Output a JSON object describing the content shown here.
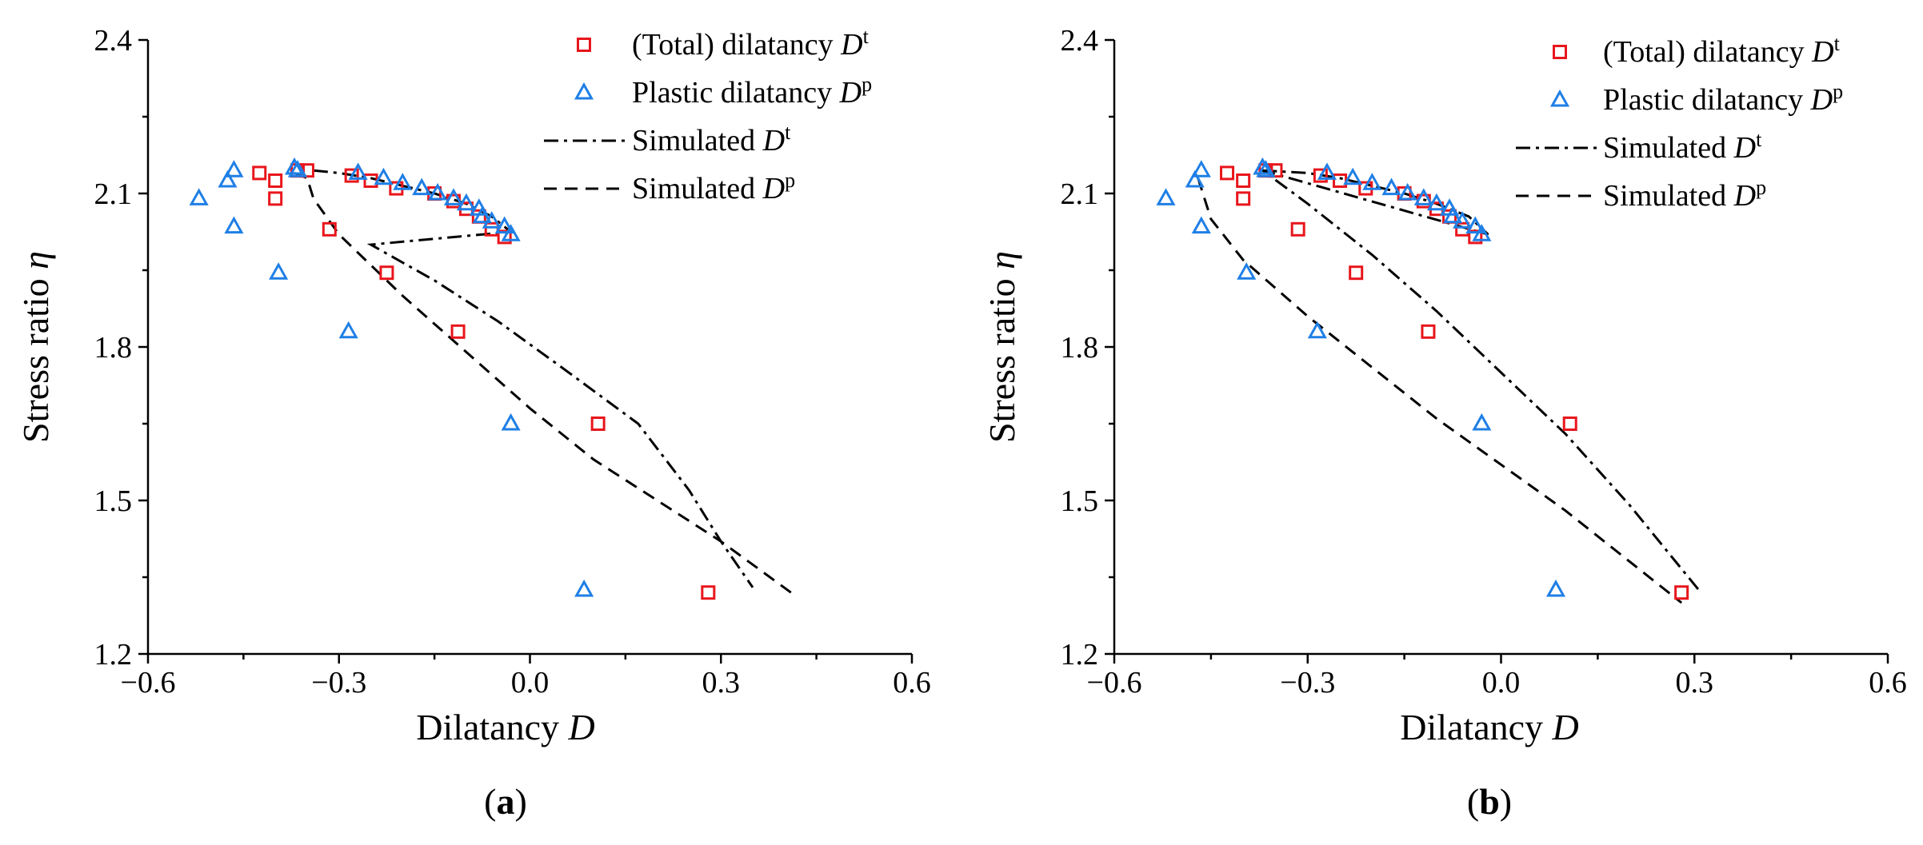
{
  "figure": {
    "colors": {
      "total": "#e8161c",
      "plastic": "#1f7fe6",
      "axis": "#000000"
    }
  },
  "chart_data": [
    {
      "type": "scatter",
      "panel_label": "a",
      "xlabel": "Dilatancy",
      "xlabel_var": "D",
      "ylabel": "Stress ratio",
      "ylabel_var": "η",
      "xlim": [
        -0.6,
        0.6
      ],
      "ylim": [
        1.2,
        2.4
      ],
      "xticks": [
        -0.6,
        -0.3,
        0.0,
        0.3,
        0.6
      ],
      "xtick_labels": [
        "−0.6",
        "−0.3",
        "0.0",
        "0.3",
        "0.6"
      ],
      "yticks": [
        1.2,
        1.5,
        1.8,
        2.1,
        2.4
      ],
      "ytick_labels": [
        "1.2",
        "1.5",
        "1.8",
        "2.1",
        "2.4"
      ],
      "legend": [
        {
          "label": "(Total) dilatancy ",
          "var": "D",
          "sup": "t"
        },
        {
          "label": "Plastic dilatancy ",
          "var": "D",
          "sup": "p"
        },
        {
          "label": "Simulated ",
          "var": "D",
          "sup": "t"
        },
        {
          "label": "Simulated ",
          "var": "D",
          "sup": "p"
        }
      ],
      "series": [
        {
          "name": "(Total) dilatancy Dt",
          "marker": "square",
          "x": [
            -0.425,
            -0.4,
            -0.4,
            -0.365,
            -0.35,
            -0.28,
            -0.25,
            -0.21,
            -0.15,
            -0.12,
            -0.1,
            -0.08,
            -0.06,
            -0.04,
            -0.315,
            -0.225,
            -0.113,
            0.107,
            0.28
          ],
          "y": [
            2.14,
            2.125,
            2.09,
            2.145,
            2.145,
            2.135,
            2.125,
            2.11,
            2.1,
            2.085,
            2.07,
            2.055,
            2.03,
            2.015,
            2.03,
            1.945,
            1.83,
            1.65,
            1.32
          ]
        },
        {
          "name": "Plastic dilatancy Dp",
          "marker": "triangle",
          "x": [
            -0.52,
            -0.475,
            -0.465,
            -0.465,
            -0.395,
            -0.37,
            -0.365,
            -0.285,
            -0.27,
            -0.23,
            -0.2,
            -0.17,
            -0.145,
            -0.12,
            -0.1,
            -0.08,
            -0.075,
            -0.06,
            -0.04,
            -0.03,
            -0.03,
            0.085
          ],
          "y": [
            2.09,
            2.125,
            2.145,
            2.035,
            1.945,
            2.15,
            2.145,
            1.83,
            2.14,
            2.13,
            2.12,
            2.11,
            2.1,
            2.09,
            2.08,
            2.07,
            2.055,
            2.045,
            2.035,
            2.02,
            1.65,
            1.325
          ]
        },
        {
          "name": "Simulated Dt",
          "line": "dashdot",
          "x": [
            -0.34,
            -0.3,
            -0.25,
            -0.2,
            -0.15,
            -0.1,
            -0.06,
            -0.03,
            -0.25,
            -0.15,
            -0.05,
            0.05,
            0.17,
            0.25,
            0.3,
            0.35
          ],
          "y": [
            2.145,
            2.14,
            2.13,
            2.115,
            2.1,
            2.08,
            2.055,
            2.025,
            2.0,
            1.93,
            1.85,
            1.76,
            1.65,
            1.52,
            1.42,
            1.33
          ]
        },
        {
          "name": "Simulated Dp",
          "line": "dashed",
          "x": [
            -0.37,
            -0.35,
            -0.34,
            -0.3,
            -0.2,
            -0.1,
            0.0,
            0.1,
            0.2,
            0.3,
            0.41
          ],
          "y": [
            2.14,
            2.13,
            2.09,
            2.02,
            1.9,
            1.79,
            1.68,
            1.58,
            1.5,
            1.42,
            1.32
          ]
        }
      ]
    },
    {
      "type": "scatter",
      "panel_label": "b",
      "xlabel": "Dilatancy",
      "xlabel_var": "D",
      "ylabel": "Stress ratio",
      "ylabel_var": "η",
      "xlim": [
        -0.6,
        0.6
      ],
      "ylim": [
        1.2,
        2.4
      ],
      "xticks": [
        -0.6,
        -0.3,
        0.0,
        0.3,
        0.6
      ],
      "xtick_labels": [
        "−0.6",
        "−0.3",
        "0.0",
        "0.3",
        "0.6"
      ],
      "yticks": [
        1.2,
        1.5,
        1.8,
        2.1,
        2.4
      ],
      "ytick_labels": [
        "1.2",
        "1.5",
        "1.8",
        "2.1",
        "2.4"
      ],
      "legend": [
        {
          "label": "(Total) dilatancy ",
          "var": "D",
          "sup": "t"
        },
        {
          "label": "Plastic dilatancy ",
          "var": "D",
          "sup": "p"
        },
        {
          "label": "Simulated ",
          "var": "D",
          "sup": "t"
        },
        {
          "label": "Simulated ",
          "var": "D",
          "sup": "p"
        }
      ],
      "series": [
        {
          "name": "(Total) dilatancy Dt",
          "marker": "square",
          "x": [
            -0.425,
            -0.4,
            -0.4,
            -0.365,
            -0.35,
            -0.28,
            -0.25,
            -0.21,
            -0.15,
            -0.12,
            -0.1,
            -0.08,
            -0.06,
            -0.04,
            -0.315,
            -0.225,
            -0.113,
            0.107,
            0.28
          ],
          "y": [
            2.14,
            2.125,
            2.09,
            2.145,
            2.145,
            2.135,
            2.125,
            2.11,
            2.1,
            2.085,
            2.07,
            2.055,
            2.03,
            2.015,
            2.03,
            1.945,
            1.83,
            1.65,
            1.32
          ]
        },
        {
          "name": "Plastic dilatancy Dp",
          "marker": "triangle",
          "x": [
            -0.52,
            -0.475,
            -0.465,
            -0.465,
            -0.395,
            -0.37,
            -0.365,
            -0.285,
            -0.27,
            -0.23,
            -0.2,
            -0.17,
            -0.145,
            -0.12,
            -0.1,
            -0.08,
            -0.075,
            -0.06,
            -0.04,
            -0.03,
            -0.03,
            0.085
          ],
          "y": [
            2.09,
            2.125,
            2.145,
            2.035,
            1.945,
            2.15,
            2.145,
            1.83,
            2.14,
            2.13,
            2.12,
            2.11,
            2.1,
            2.09,
            2.08,
            2.07,
            2.055,
            2.045,
            2.035,
            2.02,
            1.65,
            1.325
          ]
        },
        {
          "name": "Simulated Dt",
          "line": "dashdot",
          "x": [
            -0.37,
            -0.3,
            -0.25,
            -0.2,
            -0.15,
            -0.1,
            -0.05,
            -0.02,
            -0.37,
            -0.3,
            -0.2,
            -0.1,
            0.0,
            0.1,
            0.2,
            0.31
          ],
          "y": [
            2.145,
            2.14,
            2.13,
            2.115,
            2.1,
            2.08,
            2.055,
            2.02,
            2.145,
            2.08,
            1.98,
            1.87,
            1.75,
            1.63,
            1.49,
            1.32
          ]
        },
        {
          "name": "Simulated Dp",
          "line": "dashed",
          "x": [
            -0.47,
            -0.46,
            -0.45,
            -0.4,
            -0.3,
            -0.2,
            -0.1,
            0.0,
            0.1,
            0.2,
            0.28
          ],
          "y": [
            2.13,
            2.09,
            2.05,
            1.97,
            1.86,
            1.76,
            1.66,
            1.57,
            1.48,
            1.38,
            1.3
          ]
        }
      ]
    }
  ]
}
